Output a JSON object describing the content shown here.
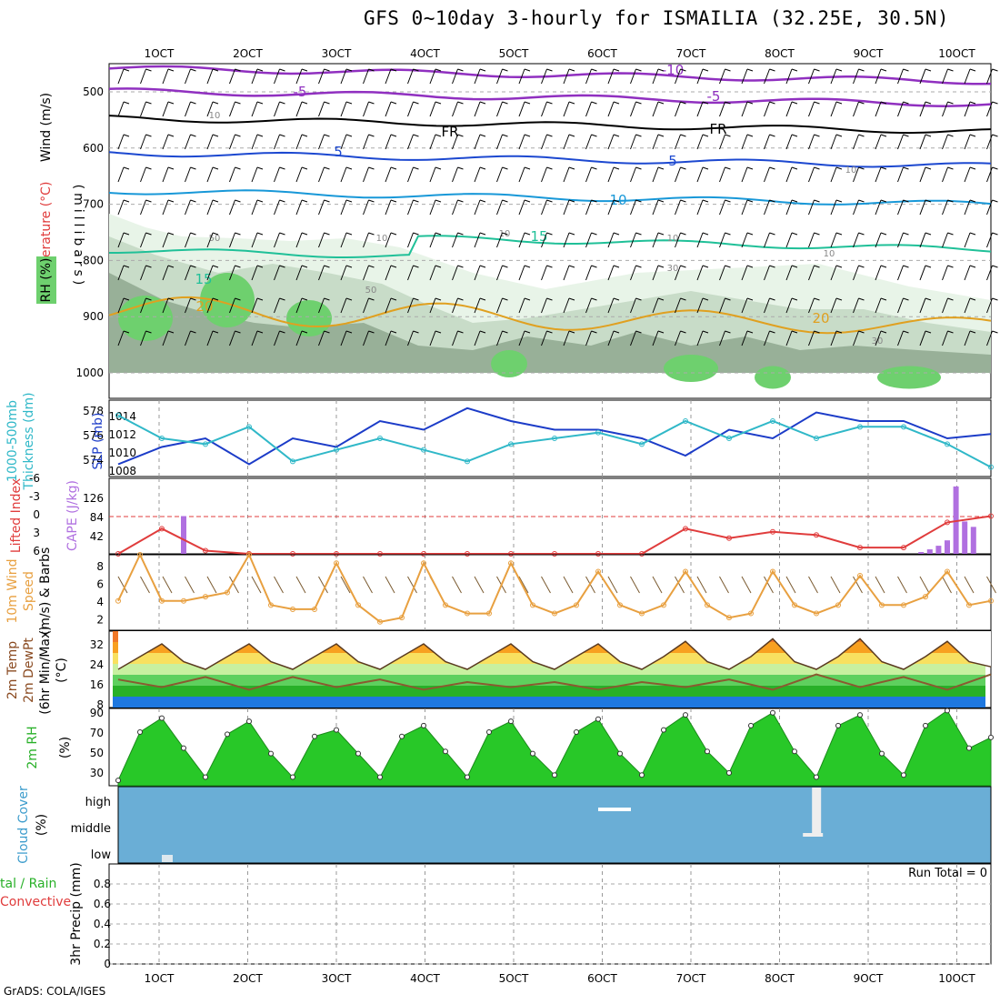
{
  "title": "GFS 0~10day 3-hourly for ISMAILIA (32.25E, 30.5N)",
  "credit": "GrADS: COLA/IGES",
  "date_ticks": [
    "1OCT",
    "2OCT",
    "3OCT",
    "4OCT",
    "5OCT",
    "6OCT",
    "7OCT",
    "8OCT",
    "9OCT",
    "10OCT"
  ],
  "colors": {
    "rh_light": "#e8f4e8",
    "rh_mid": "#c8dcc8",
    "rh_dark": "#98b098",
    "rh_green": "#6ed06e",
    "slp": "#1c3cc8",
    "thickness": "#30b8c8",
    "lifted": "#e03c3c",
    "cape": "#b070e0",
    "wind": "#e8a040",
    "temp_fill": "#f07828",
    "cloud_bg": "#6aaed6",
    "rh2m": "#28c828",
    "label_purple": "#a050d0",
    "label_green": "#28b028",
    "label_blue": "#3c9ccc"
  },
  "panels": {
    "upper": {
      "ylabel_wind": "Wind (m/s)",
      "ylabel_temp": "Temperature (°C)",
      "ylabel_rh": "RH (%)",
      "ylabel_p": "(millibars)",
      "ticks": [
        "500",
        "600",
        "700",
        "800",
        "900",
        "1000"
      ],
      "contour_labels": [
        "-10",
        "-5",
        "-5",
        "FR",
        "FR",
        "5",
        "5",
        "10",
        "15",
        "15",
        "20",
        "20"
      ],
      "rh_labels": [
        "10",
        "10",
        "30",
        "50",
        "50",
        "10",
        "10",
        "10",
        "10",
        "30"
      ]
    },
    "slp": {
      "ylabel_thick": "1000-500mb",
      "ylabel_thick2": "Thickness (dm)",
      "ylabel_slp": "SLP (mb)",
      "ticks_left": [
        "578",
        "576",
        "574"
      ],
      "ticks_right": [
        "1014",
        "1012",
        "1010",
        "1008"
      ]
    },
    "cape": {
      "ylabel_li": "Lifted Index",
      "ylabel_cape": "CAPE (J/kg)",
      "ticks_left": [
        "-6",
        "-3",
        "0",
        "3",
        "6"
      ],
      "ticks_right": [
        "126",
        "84",
        "42"
      ]
    },
    "wind": {
      "ylabel_1": "10m Wind",
      "ylabel_2": "Speed",
      "ylabel_3": "(m/s) & Barbs",
      "ticks": [
        "8",
        "6",
        "4",
        "2"
      ]
    },
    "temp": {
      "ylabel_1": "2m Temp",
      "ylabel_2": "2m DewPt",
      "ylabel_3": "(6hr Min/Max)",
      "ylabel_unit": "(°C)",
      "ticks": [
        "32",
        "24",
        "16",
        "8"
      ]
    },
    "rh": {
      "ylabel_1": "2m RH",
      "ylabel_unit": "(%)",
      "ticks": [
        "90",
        "70",
        "50",
        "30"
      ]
    },
    "cloud": {
      "ylabel_1": "Cloud Cover",
      "ylabel_unit": "(%)",
      "ticks": [
        "high",
        "middle",
        "low"
      ]
    },
    "precip": {
      "ylabel_1": "tal / Rain",
      "ylabel_2": "Convective",
      "ylabel_3": "3hr Precip (mm)",
      "ticks": [
        "0.8",
        "0.6",
        "0.4",
        "0.2",
        "0"
      ],
      "run_total": "Run Total = 0"
    }
  },
  "chart_data": [
    {
      "type": "line",
      "name": "slp",
      "unit": "mb",
      "ylim": [
        1007,
        1015
      ],
      "x_days": [
        0,
        0.5,
        1,
        1.5,
        2,
        2.5,
        3,
        3.5,
        4,
        4.5,
        5,
        5.5,
        6,
        6.5,
        7,
        7.5,
        8,
        8.5,
        9,
        9.5,
        10
      ],
      "values": [
        1008,
        1010,
        1011,
        1008,
        1011,
        1010,
        1013,
        1012,
        1014.5,
        1013,
        1012,
        1012,
        1011,
        1009,
        1012,
        1011,
        1014,
        1013,
        1013,
        1011,
        1011.5
      ]
    },
    {
      "type": "line",
      "name": "thickness",
      "unit": "dm",
      "ylim": [
        573,
        579
      ],
      "x_days": [
        0,
        0.5,
        1,
        1.5,
        2,
        2.5,
        3,
        3.5,
        4,
        4.5,
        5,
        5.5,
        6,
        6.5,
        7,
        7.5,
        8,
        8.5,
        9,
        9.5,
        10
      ],
      "values": [
        578,
        576,
        575.5,
        577,
        574,
        575,
        576,
        575,
        574,
        575.5,
        576,
        576.5,
        575.5,
        577.5,
        576,
        577.5,
        576,
        577,
        577,
        575.5,
        573.5
      ]
    },
    {
      "type": "line",
      "name": "lifted_index",
      "ylim": [
        6,
        -6
      ],
      "x_days": [
        0,
        0.5,
        1,
        1.5,
        2,
        2.5,
        3,
        3.5,
        4,
        4.5,
        5,
        5.5,
        6,
        6.5,
        7,
        7.5,
        8,
        8.5,
        9,
        9.5,
        10
      ],
      "values": [
        6,
        2,
        5.5,
        6,
        6,
        6,
        6,
        6,
        6,
        6,
        6,
        6,
        6,
        2,
        3.5,
        2.5,
        3,
        5,
        5,
        1,
        0
      ]
    },
    {
      "type": "bar",
      "name": "cape",
      "unit": "J/kg",
      "ylim": [
        0,
        168
      ],
      "x_days": [
        0.75,
        9.2,
        9.3,
        9.4,
        9.5,
        9.6,
        9.7,
        9.8
      ],
      "values": [
        84,
        4,
        10,
        18,
        30,
        150,
        72,
        60
      ]
    },
    {
      "type": "line",
      "name": "wind_speed",
      "unit": "m/s",
      "ylim": [
        0,
        9
      ],
      "x_days": [
        0,
        0.25,
        0.5,
        0.75,
        1,
        1.25,
        1.5,
        1.75,
        2,
        2.25,
        2.5,
        2.75,
        3,
        3.25,
        3.5,
        3.75,
        4,
        4.25,
        4.5,
        4.75,
        5,
        5.25,
        5.5,
        5.75,
        6,
        6.25,
        6.5,
        6.75,
        7,
        7.25,
        7.5,
        7.75,
        8,
        8.25,
        8.5,
        8.75,
        9,
        9.25,
        9.5,
        9.75,
        10
      ],
      "values": [
        3.5,
        9,
        3.5,
        3.5,
        4,
        4.5,
        9,
        3,
        2.5,
        2.5,
        8,
        3,
        1,
        1.5,
        8,
        3,
        2,
        2,
        8,
        3,
        2,
        3,
        7,
        3,
        2,
        3,
        7,
        3,
        1.5,
        2,
        7,
        3,
        2,
        3,
        6.5,
        3,
        3,
        4,
        7,
        3,
        3.5
      ]
    },
    {
      "type": "area",
      "name": "temp_2m",
      "unit": "°C",
      "ylim": [
        6,
        36
      ],
      "x_days": [
        0,
        0.25,
        0.5,
        0.75,
        1,
        1.25,
        1.5,
        1.75,
        2,
        2.25,
        2.5,
        2.75,
        3,
        3.25,
        3.5,
        3.75,
        4,
        4.25,
        4.5,
        4.75,
        5,
        5.25,
        5.5,
        5.75,
        6,
        6.25,
        6.5,
        6.75,
        7,
        7.25,
        7.5,
        7.75,
        8,
        8.25,
        8.5,
        8.75,
        9,
        9.25,
        9.5,
        9.75,
        10
      ],
      "values": [
        21,
        26,
        31,
        24,
        21,
        26,
        31,
        24,
        21,
        26,
        31,
        24,
        21,
        26,
        31,
        24,
        21,
        26,
        31,
        24,
        21,
        26,
        31,
        24,
        21,
        26,
        32,
        24,
        21,
        26,
        33,
        24,
        21,
        26,
        33,
        24,
        21,
        26,
        32,
        24,
        22
      ]
    },
    {
      "type": "line",
      "name": "dewpoint_2m",
      "unit": "°C",
      "ylim": [
        6,
        36
      ],
      "x_days": [
        0,
        0.5,
        1,
        1.5,
        2,
        2.5,
        3,
        3.5,
        4,
        4.5,
        5,
        5.5,
        6,
        6.5,
        7,
        7.5,
        8,
        8.5,
        9,
        9.5,
        10
      ],
      "values": [
        17,
        14,
        18,
        13,
        18,
        14,
        17,
        13,
        16,
        14,
        16,
        13,
        16,
        14,
        17,
        13,
        19,
        14,
        18,
        13,
        19
      ]
    },
    {
      "type": "area",
      "name": "rh_2m",
      "unit": "%",
      "ylim": [
        20,
        92
      ],
      "x_days": [
        0,
        0.25,
        0.5,
        0.75,
        1,
        1.25,
        1.5,
        1.75,
        2,
        2.25,
        2.5,
        2.75,
        3,
        3.25,
        3.5,
        3.75,
        4,
        4.25,
        4.5,
        4.75,
        5,
        5.25,
        5.5,
        5.75,
        6,
        6.25,
        6.5,
        6.75,
        7,
        7.25,
        7.5,
        7.75,
        8,
        8.25,
        8.5,
        8.75,
        9,
        9.25,
        9.5,
        9.75,
        10
      ],
      "values": [
        25,
        70,
        83,
        55,
        28,
        68,
        80,
        50,
        28,
        66,
        72,
        50,
        28,
        66,
        76,
        52,
        28,
        70,
        80,
        50,
        30,
        70,
        82,
        50,
        30,
        72,
        86,
        52,
        32,
        76,
        88,
        52,
        28,
        76,
        86,
        50,
        30,
        76,
        90,
        55,
        65
      ]
    },
    {
      "type": "bar",
      "name": "cloud_cover",
      "unit": "%",
      "x_days": [
        0.5,
        5.5,
        7.95
      ],
      "values": [
        8,
        2,
        85
      ]
    },
    {
      "type": "bar",
      "name": "precip_3hr",
      "unit": "mm",
      "ylim": [
        0,
        1
      ],
      "x_days": [],
      "values": []
    }
  ]
}
